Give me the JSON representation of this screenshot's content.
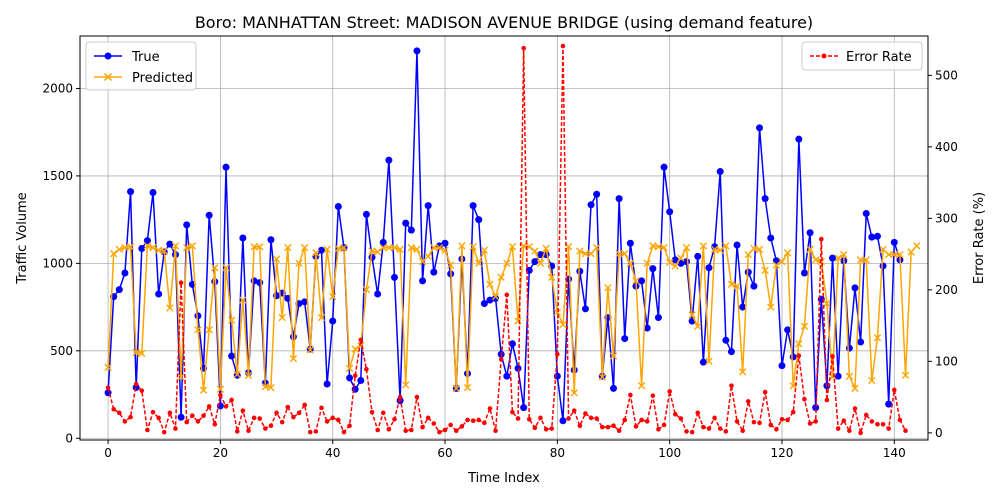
{
  "chart_data": {
    "type": "line",
    "title": "Boro: MANHATTAN Street: MADISON AVENUE BRIDGE (using demand feature)",
    "xlabel": "Time Index",
    "ylabel_left": "Traffic Volume",
    "ylabel_right": "Error Rate (%)",
    "xlim": [
      -5,
      146
    ],
    "ylim_left": [
      -10,
      2300
    ],
    "ylim_right": [
      -10,
      555
    ],
    "xticks": [
      0,
      20,
      40,
      60,
      80,
      100,
      120,
      140
    ],
    "yticks_left": [
      0,
      500,
      1000,
      1500,
      2000
    ],
    "yticks_right": [
      0,
      100,
      200,
      300,
      400,
      500
    ],
    "grid": true,
    "legend_left": "top-left",
    "legend_right": "top-right",
    "colors": {
      "true": "#0000ff",
      "predicted": "#ffa500",
      "error": "#ff0000"
    },
    "series": [
      {
        "name": "True",
        "axis": "left",
        "values": [
          260,
          810,
          850,
          945,
          1410,
          290,
          1085,
          1130,
          1405,
          825,
          1065,
          1110,
          1050,
          120,
          1220,
          880,
          700,
          400,
          1275,
          895,
          185,
          1550,
          470,
          360,
          1145,
          375,
          900,
          890,
          315,
          1135,
          815,
          830,
          800,
          580,
          770,
          780,
          510,
          1040,
          1075,
          310,
          670,
          1325,
          1090,
          345,
          280,
          330,
          1280,
          1035,
          825,
          1120,
          1590,
          920,
          215,
          1230,
          1190,
          2215,
          900,
          1330,
          950,
          1100,
          1115,
          940,
          285,
          1025,
          370,
          1330,
          1250,
          770,
          790,
          800,
          480,
          355,
          540,
          400,
          175,
          960,
          1010,
          1050,
          1050,
          985,
          355,
          100,
          910,
          390,
          955,
          740,
          1335,
          1395,
          355,
          690,
          285,
          1370,
          570,
          1115,
          870,
          900,
          630,
          970,
          690,
          1550,
          1295,
          1020,
          1000,
          1010,
          670,
          1040,
          435,
          975,
          1095,
          1525,
          560,
          495,
          1105,
          750,
          950,
          870,
          1775,
          1370,
          1145,
          1015,
          415,
          620,
          465,
          1710,
          945,
          1175,
          175,
          795,
          300,
          1030,
          355,
          1015,
          515,
          860,
          550,
          1285,
          1150,
          1155,
          985,
          195,
          1120,
          1020
        ]
      },
      {
        "name": "Predicted",
        "axis": "left",
        "values": [
          405,
          1055,
          1080,
          1090,
          1095,
          490,
          485,
          1100,
          1090,
          1075,
          1070,
          745,
          1100,
          350,
          1090,
          1100,
          620,
          275,
          620,
          975,
          280,
          975,
          675,
          365,
          790,
          360,
          1095,
          1095,
          295,
          290,
          1025,
          690,
          1090,
          455,
          1000,
          1090,
          505,
          1060,
          690,
          1080,
          810,
          1085,
          1090,
          400,
          510,
          530,
          850,
          1070,
          1065,
          1090,
          1090,
          1090,
          1080,
          305,
          1090,
          1080,
          1010,
          1040,
          1090,
          1090,
          1075,
          990,
          285,
          1100,
          290,
          1095,
          1000,
          1075,
          880,
          810,
          920,
          1000,
          1095,
          670,
          1100,
          1095,
          1070,
          1000,
          1085,
          920,
          720,
          650,
          1095,
          260,
          1070,
          1055,
          1055,
          1090,
          350,
          860,
          470,
          1055,
          1055,
          1000,
          900,
          300,
          1000,
          1100,
          1095,
          1090,
          1005,
          985,
          1030,
          1090,
          705,
          640,
          1100,
          440,
          1080,
          1075,
          1100,
          880,
          870,
          380,
          1050,
          1085,
          1080,
          960,
          750,
          990,
          1010,
          1060,
          300,
          540,
          640,
          1080,
          1020,
          1010,
          770,
          350,
          1030,
          1050,
          355,
          285,
          1020,
          1020,
          330,
          575,
          1080,
          1050,
          1050,
          1050,
          360,
          1065,
          1100
        ]
      },
      {
        "name": "Error Rate",
        "axis": "right",
        "values": [
          63,
          33,
          28,
          16,
          22,
          68,
          59,
          4,
          29,
          21,
          1,
          28,
          6,
          210,
          15,
          24,
          16,
          24,
          37,
          12,
          53,
          37,
          46,
          2,
          31,
          3,
          21,
          20,
          6,
          10,
          28,
          15,
          36,
          22,
          28,
          39,
          1,
          2,
          35,
          16,
          21,
          18,
          1,
          10,
          80,
          130,
          89,
          29,
          4,
          28,
          5,
          19,
          50,
          3,
          4,
          50,
          8,
          21,
          13,
          1,
          4,
          11,
          3,
          9,
          18,
          17,
          18,
          14,
          34,
          3,
          103,
          193,
          29,
          20,
          538,
          19,
          7,
          21,
          5,
          6,
          110,
          541,
          20,
          31,
          10,
          27,
          21,
          20,
          8,
          8,
          10,
          3,
          18,
          53,
          9,
          18,
          16,
          52,
          5,
          11,
          58,
          26,
          20,
          2,
          1,
          28,
          8,
          6,
          21,
          6,
          2,
          66,
          16,
          3,
          44,
          15,
          14,
          57,
          11,
          5,
          19,
          18,
          29,
          108,
          47,
          13,
          16,
          271,
          46,
          107,
          6,
          17,
          3,
          34,
          0,
          25,
          16,
          12,
          12,
          6,
          60,
          18,
          3
        ]
      }
    ]
  }
}
